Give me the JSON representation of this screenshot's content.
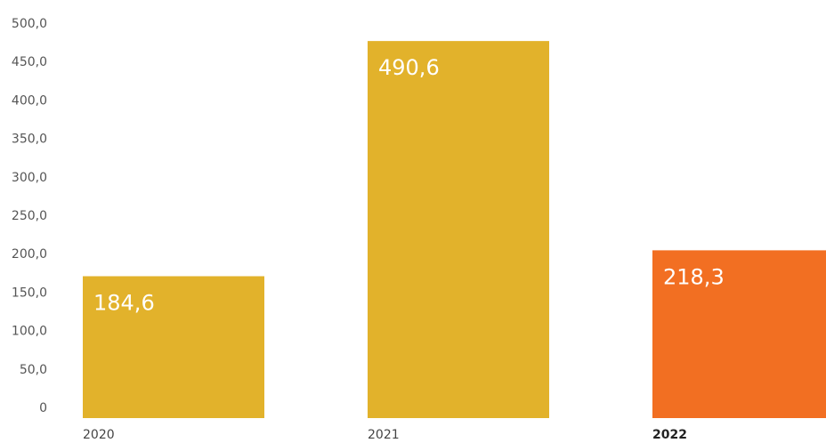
{
  "chart_data": {
    "type": "bar",
    "categories": [
      "2020",
      "2021",
      "2022"
    ],
    "values": [
      184.6,
      490.6,
      218.3
    ],
    "value_labels": [
      "184,6",
      "490,6",
      "218,3"
    ],
    "ylim": [
      0,
      500
    ],
    "yticks": [
      "0",
      "50,0",
      "100,0",
      "150,0",
      "200,0",
      "250,0",
      "300,0",
      "350,0",
      "400,0",
      "450,0",
      "500,0"
    ],
    "colors": [
      "#E2B22B",
      "#E2B22B",
      "#F26F22"
    ],
    "highlight_category": "2022",
    "grid": false,
    "title": "",
    "xlabel": "",
    "ylabel": ""
  }
}
